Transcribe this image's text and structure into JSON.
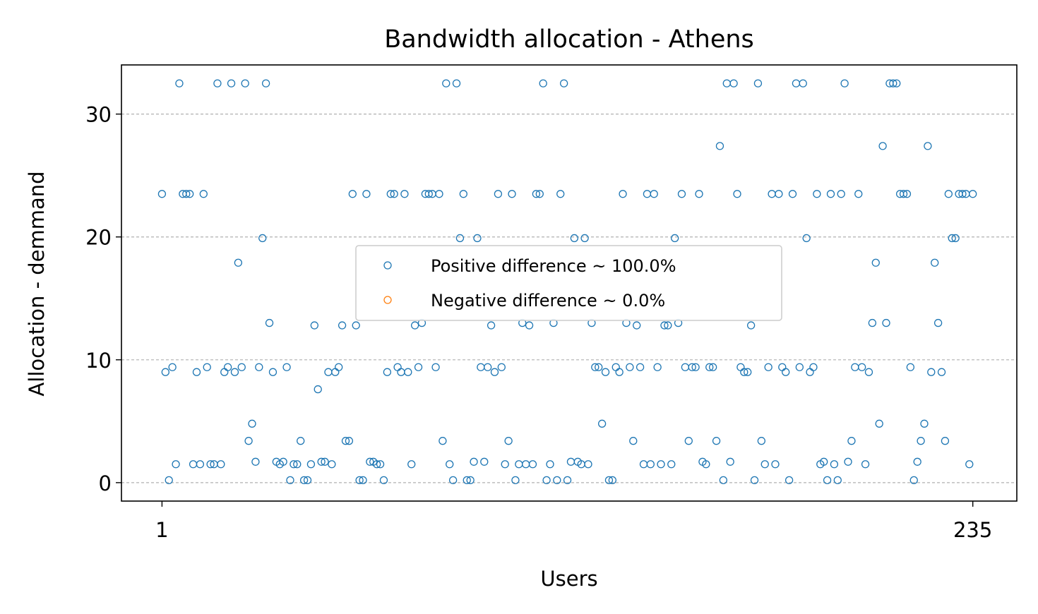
{
  "chart_data": {
    "type": "scatter",
    "title": "Bandwidth allocation - Athens",
    "xlabel": "Users",
    "ylabel": "Allocation - demmand",
    "xlim": [
      -10.7,
      247.7
    ],
    "ylim": [
      -1.5,
      34.0
    ],
    "x_ticks": [
      1,
      235
    ],
    "y_ticks": [
      0,
      10,
      20,
      30
    ],
    "grid": "y-dashed",
    "legend_position": "center",
    "colors": {
      "positive": "#1f77b4",
      "negative": "#ff7f0e"
    },
    "series": [
      {
        "name": "Positive difference ~ 100.0%",
        "color": "#1f77b4",
        "points": [
          [
            1,
            23.5
          ],
          [
            2,
            9.0
          ],
          [
            3,
            0.2
          ],
          [
            4,
            9.4
          ],
          [
            5,
            1.5
          ],
          [
            6,
            32.5
          ],
          [
            7,
            23.5
          ],
          [
            8,
            23.5
          ],
          [
            9,
            23.5
          ],
          [
            10,
            1.5
          ],
          [
            11,
            9.0
          ],
          [
            12,
            1.5
          ],
          [
            13,
            23.5
          ],
          [
            14,
            9.4
          ],
          [
            15,
            1.5
          ],
          [
            16,
            1.5
          ],
          [
            17,
            32.5
          ],
          [
            18,
            1.5
          ],
          [
            19,
            9.0
          ],
          [
            20,
            9.4
          ],
          [
            21,
            32.5
          ],
          [
            22,
            9.0
          ],
          [
            23,
            17.9
          ],
          [
            24,
            9.4
          ],
          [
            25,
            32.5
          ],
          [
            26,
            3.4
          ],
          [
            27,
            4.8
          ],
          [
            28,
            1.7
          ],
          [
            29,
            9.4
          ],
          [
            30,
            19.9
          ],
          [
            31,
            32.5
          ],
          [
            32,
            13.0
          ],
          [
            33,
            9.0
          ],
          [
            34,
            1.7
          ],
          [
            35,
            1.5
          ],
          [
            36,
            1.7
          ],
          [
            37,
            9.4
          ],
          [
            38,
            0.2
          ],
          [
            39,
            1.5
          ],
          [
            40,
            1.5
          ],
          [
            41,
            3.4
          ],
          [
            42,
            0.2
          ],
          [
            43,
            0.2
          ],
          [
            44,
            1.5
          ],
          [
            45,
            12.8
          ],
          [
            46,
            7.6
          ],
          [
            47,
            1.7
          ],
          [
            48,
            1.7
          ],
          [
            49,
            9.0
          ],
          [
            50,
            1.5
          ],
          [
            51,
            9.0
          ],
          [
            52,
            9.4
          ],
          [
            53,
            12.8
          ],
          [
            54,
            3.4
          ],
          [
            55,
            3.4
          ],
          [
            56,
            23.5
          ],
          [
            57,
            12.8
          ],
          [
            58,
            0.2
          ],
          [
            59,
            0.2
          ],
          [
            60,
            23.5
          ],
          [
            61,
            1.7
          ],
          [
            62,
            1.7
          ],
          [
            63,
            1.5
          ],
          [
            64,
            1.5
          ],
          [
            65,
            0.2
          ],
          [
            66,
            9.0
          ],
          [
            67,
            23.5
          ],
          [
            68,
            23.5
          ],
          [
            69,
            9.4
          ],
          [
            70,
            9.0
          ],
          [
            71,
            23.5
          ],
          [
            72,
            9.0
          ],
          [
            73,
            1.5
          ],
          [
            74,
            12.8
          ],
          [
            75,
            9.4
          ],
          [
            76,
            13.0
          ],
          [
            77,
            23.5
          ],
          [
            78,
            23.5
          ],
          [
            79,
            23.5
          ],
          [
            80,
            9.4
          ],
          [
            81,
            23.5
          ],
          [
            82,
            3.4
          ],
          [
            83,
            32.5
          ],
          [
            84,
            1.5
          ],
          [
            85,
            0.2
          ],
          [
            86,
            32.5
          ],
          [
            87,
            19.9
          ],
          [
            88,
            23.5
          ],
          [
            89,
            0.2
          ],
          [
            90,
            0.2
          ],
          [
            91,
            1.7
          ],
          [
            92,
            19.9
          ],
          [
            93,
            9.4
          ],
          [
            94,
            1.7
          ],
          [
            95,
            9.4
          ],
          [
            96,
            12.8
          ],
          [
            97,
            9.0
          ],
          [
            98,
            23.5
          ],
          [
            99,
            9.4
          ],
          [
            100,
            1.5
          ],
          [
            101,
            3.4
          ],
          [
            102,
            23.5
          ],
          [
            103,
            0.2
          ],
          [
            104,
            1.5
          ],
          [
            105,
            13.0
          ],
          [
            106,
            1.5
          ],
          [
            107,
            12.8
          ],
          [
            108,
            1.5
          ],
          [
            109,
            23.5
          ],
          [
            110,
            23.5
          ],
          [
            111,
            32.5
          ],
          [
            112,
            0.2
          ],
          [
            113,
            1.5
          ],
          [
            114,
            13.0
          ],
          [
            115,
            0.2
          ],
          [
            116,
            23.5
          ],
          [
            117,
            32.5
          ],
          [
            118,
            0.2
          ],
          [
            119,
            1.7
          ],
          [
            120,
            19.9
          ],
          [
            121,
            1.7
          ],
          [
            122,
            1.5
          ],
          [
            123,
            19.9
          ],
          [
            124,
            1.5
          ],
          [
            125,
            13.0
          ],
          [
            126,
            9.4
          ],
          [
            127,
            9.4
          ],
          [
            128,
            4.8
          ],
          [
            129,
            9.0
          ],
          [
            130,
            0.2
          ],
          [
            131,
            0.2
          ],
          [
            132,
            9.4
          ],
          [
            133,
            9.0
          ],
          [
            134,
            23.5
          ],
          [
            135,
            13.0
          ],
          [
            136,
            9.4
          ],
          [
            137,
            3.4
          ],
          [
            138,
            12.8
          ],
          [
            139,
            9.4
          ],
          [
            140,
            1.5
          ],
          [
            141,
            23.5
          ],
          [
            142,
            1.5
          ],
          [
            143,
            23.5
          ],
          [
            144,
            9.4
          ],
          [
            145,
            1.5
          ],
          [
            146,
            12.8
          ],
          [
            147,
            12.8
          ],
          [
            148,
            1.5
          ],
          [
            149,
            19.9
          ],
          [
            150,
            13.0
          ],
          [
            151,
            23.5
          ],
          [
            152,
            9.4
          ],
          [
            153,
            3.4
          ],
          [
            154,
            9.4
          ],
          [
            155,
            9.4
          ],
          [
            156,
            23.5
          ],
          [
            157,
            1.7
          ],
          [
            158,
            1.5
          ],
          [
            159,
            9.4
          ],
          [
            160,
            9.4
          ],
          [
            161,
            3.4
          ],
          [
            162,
            27.4
          ],
          [
            163,
            0.2
          ],
          [
            164,
            32.5
          ],
          [
            165,
            1.7
          ],
          [
            166,
            32.5
          ],
          [
            167,
            23.5
          ],
          [
            168,
            9.4
          ],
          [
            169,
            9.0
          ],
          [
            170,
            9.0
          ],
          [
            171,
            12.8
          ],
          [
            172,
            0.2
          ],
          [
            173,
            32.5
          ],
          [
            174,
            3.4
          ],
          [
            175,
            1.5
          ],
          [
            176,
            9.4
          ],
          [
            177,
            23.5
          ],
          [
            178,
            1.5
          ],
          [
            179,
            23.5
          ],
          [
            180,
            9.4
          ],
          [
            181,
            9.0
          ],
          [
            182,
            0.2
          ],
          [
            183,
            23.5
          ],
          [
            184,
            32.5
          ],
          [
            185,
            9.4
          ],
          [
            186,
            32.5
          ],
          [
            187,
            19.9
          ],
          [
            188,
            9.0
          ],
          [
            189,
            9.4
          ],
          [
            190,
            23.5
          ],
          [
            191,
            1.5
          ],
          [
            192,
            1.7
          ],
          [
            193,
            0.2
          ],
          [
            194,
            23.5
          ],
          [
            195,
            1.5
          ],
          [
            196,
            0.2
          ],
          [
            197,
            23.5
          ],
          [
            198,
            32.5
          ],
          [
            199,
            1.7
          ],
          [
            200,
            3.4
          ],
          [
            201,
            9.4
          ],
          [
            202,
            23.5
          ],
          [
            203,
            9.4
          ],
          [
            204,
            1.5
          ],
          [
            205,
            9.0
          ],
          [
            206,
            13.0
          ],
          [
            207,
            17.9
          ],
          [
            208,
            4.8
          ],
          [
            209,
            27.4
          ],
          [
            210,
            13.0
          ],
          [
            211,
            32.5
          ],
          [
            212,
            32.5
          ],
          [
            213,
            32.5
          ],
          [
            214,
            23.5
          ],
          [
            215,
            23.5
          ],
          [
            216,
            23.5
          ],
          [
            217,
            9.4
          ],
          [
            218,
            0.2
          ],
          [
            219,
            1.7
          ],
          [
            220,
            3.4
          ],
          [
            221,
            4.8
          ],
          [
            222,
            27.4
          ],
          [
            223,
            9.0
          ],
          [
            224,
            17.9
          ],
          [
            225,
            13.0
          ],
          [
            226,
            9.0
          ],
          [
            227,
            3.4
          ],
          [
            228,
            23.5
          ],
          [
            229,
            19.9
          ],
          [
            230,
            19.9
          ],
          [
            231,
            23.5
          ],
          [
            232,
            23.5
          ],
          [
            233,
            23.5
          ],
          [
            234,
            1.5
          ],
          [
            235,
            23.5
          ]
        ]
      },
      {
        "name": "Negative difference ~ 0.0%",
        "color": "#ff7f0e",
        "points": []
      }
    ]
  }
}
